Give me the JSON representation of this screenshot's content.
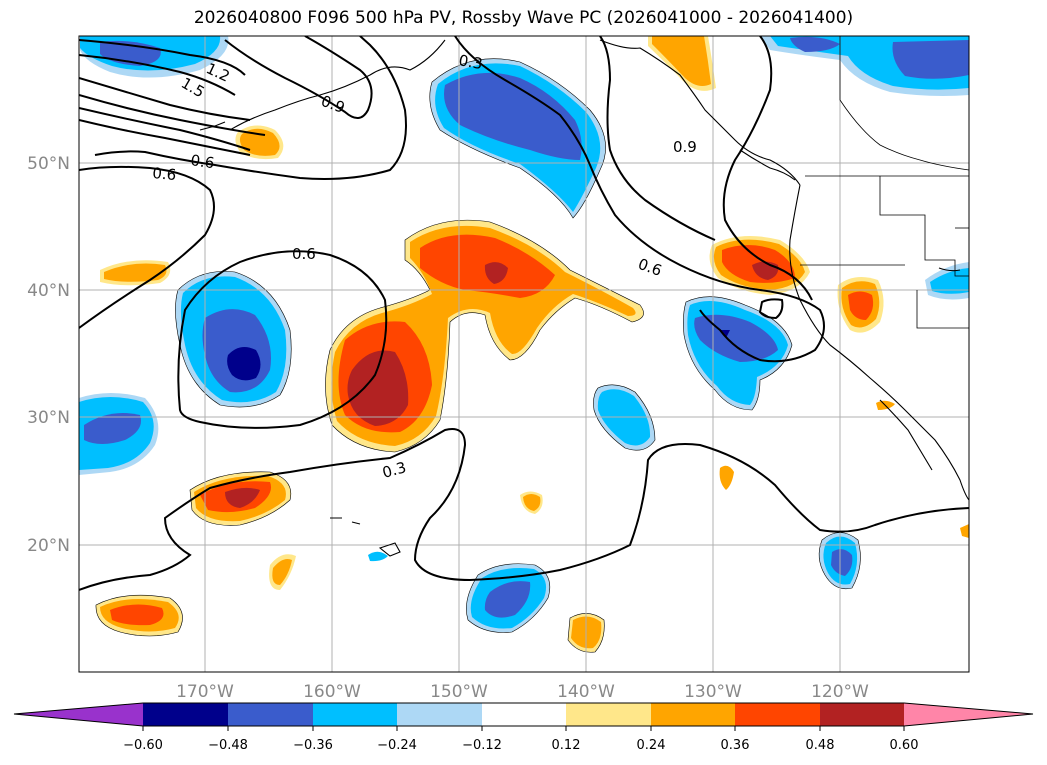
{
  "title": "2026040800 F096 500 hPa PV, Rossby Wave PC (2026041000 - 2026041400)",
  "lat_labels": [
    "50°N",
    "40°N",
    "30°N",
    "20°N"
  ],
  "lon_labels": [
    "170°W",
    "160°W",
    "150°W",
    "140°W",
    "130°W",
    "120°W"
  ],
  "contour_labels": [
    "1.2",
    "1.5",
    "0.9",
    "0.3",
    "0.9",
    "0.6",
    "0.6",
    "0.6",
    "0.6",
    "0.3"
  ],
  "colorbar": {
    "ticks": [
      "−0.60",
      "−0.48",
      "−0.36",
      "−0.24",
      "−0.12",
      "0.12",
      "0.24",
      "0.36",
      "0.48",
      "0.60"
    ],
    "colors": {
      "under": "#9932cc",
      "neg060": "#00008b",
      "neg048": "#3a5ccc",
      "neg036": "#00bfff",
      "neg024": "#add8f5",
      "neutral": "#ffffff",
      "pos012": "#ffe78a",
      "pos024": "#ffa500",
      "pos036": "#ff4500",
      "pos048": "#b22222",
      "over": "#ff85a8"
    }
  }
}
